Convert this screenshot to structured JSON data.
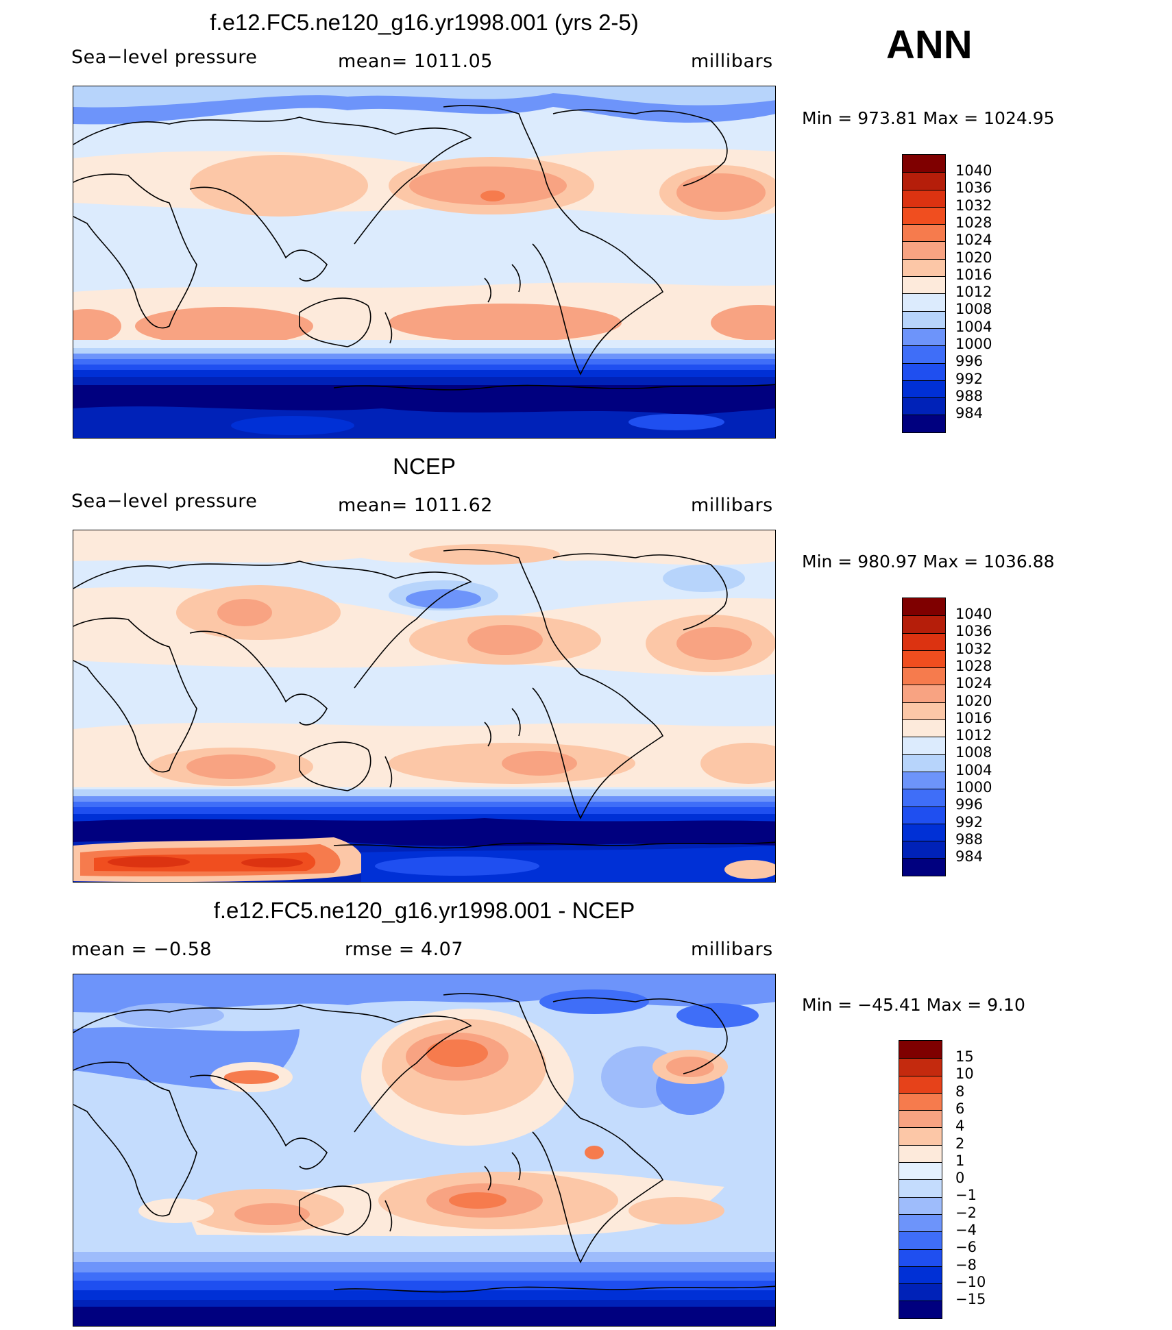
{
  "season": "ANN",
  "colors": {
    "pressure_scale": [
      "#00007f",
      "#0022b8",
      "#0030d6",
      "#1f4ff0",
      "#3f6ef8",
      "#6d94fa",
      "#b7d4fb",
      "#dcebfd",
      "#fdeadb",
      "#fcc7a7",
      "#f8a382",
      "#f67b4d",
      "#f04e1f",
      "#dc3311",
      "#b51e0a",
      "#7f0000"
    ],
    "diff_scale": [
      "#00007f",
      "#0022b8",
      "#0030d6",
      "#1f4ff0",
      "#3f6ef8",
      "#6d94fa",
      "#9ebcfb",
      "#c4dcfd",
      "#e4f0fe",
      "#fdeadb",
      "#fcc7a7",
      "#f8a382",
      "#f67b4d",
      "#e6421a",
      "#c42a0e",
      "#7f0000"
    ]
  },
  "panels": [
    {
      "title": "f.e12.FC5.ne120_g16.yr1998.001 (yrs 2-5)",
      "left_label": "Sea−level pressure",
      "center_label": "mean=  1011.05",
      "units": "millibars",
      "minmax": "Min  =  973.81  Max  =  1024.95",
      "colorbar_labels": [
        "1040",
        "1036",
        "1032",
        "1028",
        "1024",
        "1020",
        "1016",
        "1012",
        "1008",
        "1004",
        "1000",
        "996",
        "992",
        "988",
        "984"
      ]
    },
    {
      "title": "NCEP",
      "left_label": "Sea−level pressure",
      "center_label": "mean=  1011.62",
      "units": "millibars",
      "minmax": "Min  =  980.97  Max  =  1036.88",
      "colorbar_labels": [
        "1040",
        "1036",
        "1032",
        "1028",
        "1024",
        "1020",
        "1016",
        "1012",
        "1008",
        "1004",
        "1000",
        "996",
        "992",
        "988",
        "984"
      ]
    },
    {
      "title": "f.e12.FC5.ne120_g16.yr1998.001 - NCEP",
      "left_label": "mean  =    −0.58",
      "center_label": "rmse  =     4.07",
      "units": "millibars",
      "minmax": "Min  =  −45.41  Max  =      9.10",
      "colorbar_labels": [
        "15",
        "10",
        "8",
        "6",
        "4",
        "2",
        "1",
        "0",
        "−1",
        "−2",
        "−4",
        "−6",
        "−8",
        "−10",
        "−15"
      ]
    }
  ]
}
